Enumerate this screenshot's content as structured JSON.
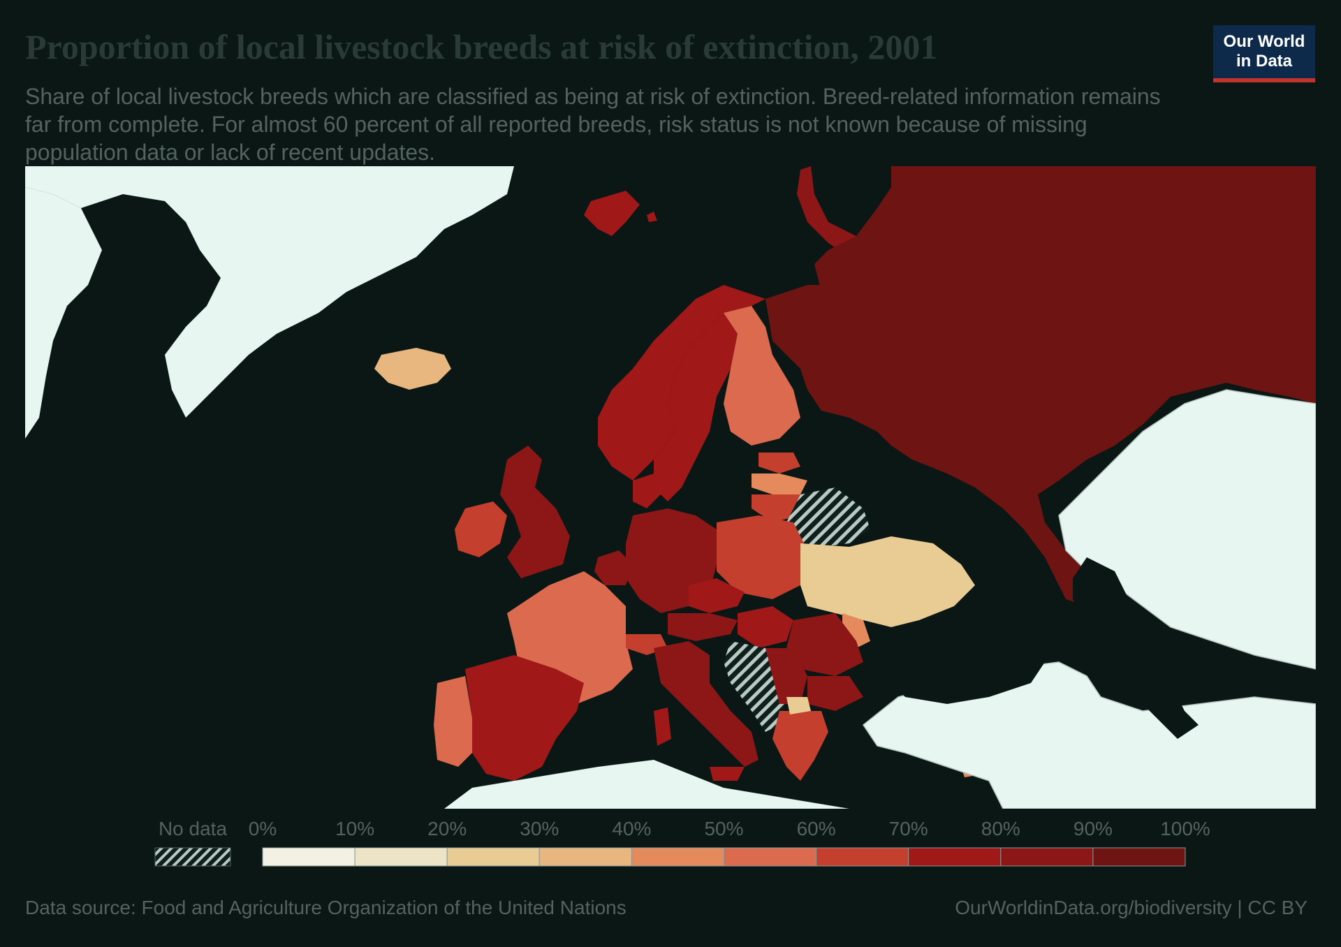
{
  "header": {
    "title": "Proportion of local livestock breeds at risk of extinction, 2001",
    "subtitle": "Share of local livestock breeds which are classified as being at risk of extinction. Breed-related information remains far from complete. For almost 60 percent of all reported breeds, risk status is not known because of missing population data or lack of recent updates.",
    "logo_line1": "Our World",
    "logo_line2": "in Data"
  },
  "legend": {
    "no_data_label": "No data",
    "ticks": [
      "0%",
      "10%",
      "20%",
      "30%",
      "40%",
      "50%",
      "60%",
      "70%",
      "80%",
      "90%",
      "100%"
    ],
    "colors": [
      "#f3f1e3",
      "#ede3c7",
      "#e9cb94",
      "#e8b67f",
      "#e48a5c",
      "#db6a4f",
      "#c43f2d",
      "#a01818",
      "#8c1716",
      "#6e1514"
    ]
  },
  "map": {
    "region": "Europe",
    "colors": {
      "ocean": "#0a1714",
      "no_data_land": "#e8f6f1",
      "border": "#b6c3bf"
    }
  },
  "footer": {
    "source": "Data source: Food and Agriculture Organization of the United Nations",
    "license": "OurWorldinData.org/biodiversity | CC BY"
  }
}
